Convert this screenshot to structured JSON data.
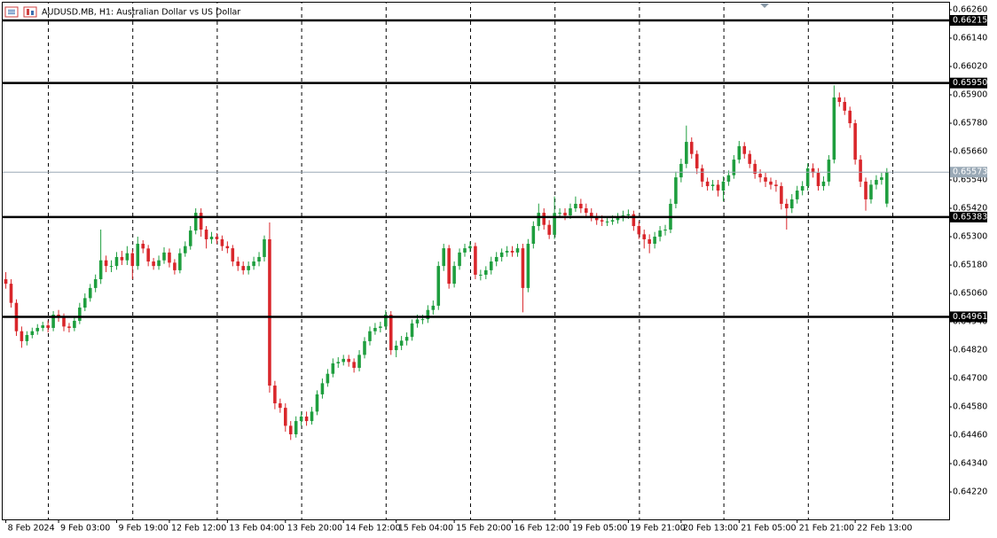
{
  "chart_data": {
    "type": "candlestick",
    "title": "AUDUSD.MB, H1:  Australian Dollar vs US Dollar",
    "up_color": "#1e9e3e",
    "down_color": "#d9262b",
    "level_color": "#000000",
    "current_color": "#9aa9b6",
    "current_price": 0.65573,
    "open": [
      0.6512,
      0.65101,
      0.6502,
      0.649,
      0.64858,
      0.64884,
      0.649,
      0.64914,
      0.64925,
      0.64914,
      0.6497,
      0.6496,
      0.6492,
      0.64914,
      0.64944,
      0.65,
      0.6504,
      0.65083,
      0.6512,
      0.652,
      0.65176,
      0.65176,
      0.65214,
      0.652,
      0.6523,
      0.65176,
      0.6527,
      0.6525,
      0.65195,
      0.65176,
      0.652,
      0.65233,
      0.6519,
      0.65158,
      0.6523,
      0.6526,
      0.65326,
      0.65401,
      0.6533,
      0.65289,
      0.653,
      0.65289,
      0.6526,
      0.65251,
      0.65195,
      0.65176,
      0.65158,
      0.65176,
      0.65195,
      0.65214,
      0.65289,
      0.6467,
      0.64595,
      0.64576,
      0.645,
      0.64464,
      0.6452,
      0.64539,
      0.6452,
      0.6456,
      0.64633,
      0.6468,
      0.6472,
      0.64764,
      0.6477,
      0.64783,
      0.6477,
      0.64745,
      0.648,
      0.64858,
      0.649,
      0.64914,
      0.6492,
      0.6497,
      0.6482,
      0.64839,
      0.6486,
      0.64876,
      0.64933,
      0.6495,
      0.64951,
      0.6499,
      0.65008,
      0.65176,
      0.65251,
      0.65101,
      0.65176,
      0.65233,
      0.65251,
      0.6526,
      0.65139,
      0.65139,
      0.65158,
      0.65195,
      0.65214,
      0.65233,
      0.6524,
      0.65233,
      0.65251,
      0.65083,
      0.6527,
      0.65345,
      0.65401,
      0.6535,
      0.65308,
      0.654,
      0.65401,
      0.6539,
      0.6542,
      0.65439,
      0.6542,
      0.65401,
      0.65383,
      0.6537,
      0.65364,
      0.65364,
      0.6537,
      0.65383,
      0.6539,
      0.65395,
      0.65345,
      0.6531,
      0.65289,
      0.6527,
      0.653,
      0.65326,
      0.6533,
      0.65439,
      0.65551,
      0.65608,
      0.65701,
      0.6565,
      0.65589,
      0.65533,
      0.65514,
      0.6552,
      0.65495,
      0.65533,
      0.6556,
      0.65626,
      0.65683,
      0.6565,
      0.65608,
      0.65566,
      0.65551,
      0.65533,
      0.6552,
      0.65514,
      0.65439,
      0.6542,
      0.65458,
      0.65495,
      0.65514,
      0.65589,
      0.6557,
      0.65514,
      0.65533,
      0.65626,
      0.65889,
      0.6587,
      0.65833,
      0.6578,
      0.65626,
      0.65533,
      0.65458,
      0.6552,
      0.6554,
      0.6544
    ],
    "high": [
      0.6515,
      0.6512,
      0.65035,
      0.6492,
      0.649,
      0.64915,
      0.6493,
      0.6494,
      0.64945,
      0.64985,
      0.6499,
      0.64975,
      0.64935,
      0.6496,
      0.6502,
      0.6506,
      0.651,
      0.6514,
      0.6533,
      0.6522,
      0.652,
      0.65235,
      0.6524,
      0.6526,
      0.65245,
      0.653,
      0.65285,
      0.65265,
      0.6521,
      0.6522,
      0.65255,
      0.6525,
      0.65205,
      0.6525,
      0.6528,
      0.65345,
      0.6542,
      0.6542,
      0.65345,
      0.6532,
      0.65315,
      0.65305,
      0.6528,
      0.65265,
      0.65215,
      0.65195,
      0.65195,
      0.65215,
      0.65235,
      0.65305,
      0.6536,
      0.6469,
      0.64615,
      0.64595,
      0.6452,
      0.6454,
      0.6456,
      0.6456,
      0.6458,
      0.6465,
      0.647,
      0.6474,
      0.64785,
      0.6479,
      0.648,
      0.648,
      0.64785,
      0.6482,
      0.64875,
      0.6492,
      0.64935,
      0.6494,
      0.6499,
      0.64985,
      0.6486,
      0.6488,
      0.64895,
      0.6495,
      0.6497,
      0.6497,
      0.6501,
      0.6503,
      0.65195,
      0.6527,
      0.65265,
      0.65195,
      0.6525,
      0.6527,
      0.6528,
      0.65275,
      0.6516,
      0.65175,
      0.65215,
      0.65235,
      0.6525,
      0.6526,
      0.6526,
      0.6527,
      0.6527,
      0.6529,
      0.65365,
      0.6544,
      0.6542,
      0.6537,
      0.6547,
      0.6542,
      0.6542,
      0.6544,
      0.6547,
      0.6546,
      0.6544,
      0.6542,
      0.654,
      0.6539,
      0.65385,
      0.6539,
      0.654,
      0.6541,
      0.65415,
      0.6541,
      0.65365,
      0.6533,
      0.6531,
      0.6532,
      0.65345,
      0.6535,
      0.6546,
      0.65575,
      0.6563,
      0.6577,
      0.6572,
      0.65665,
      0.65605,
      0.6555,
      0.6554,
      0.6554,
      0.65555,
      0.6558,
      0.65645,
      0.65705,
      0.657,
      0.65665,
      0.65625,
      0.65585,
      0.6557,
      0.6555,
      0.6554,
      0.6553,
      0.6546,
      0.6548,
      0.65515,
      0.65535,
      0.6561,
      0.6561,
      0.6559,
      0.65555,
      0.65645,
      0.6594,
      0.6591,
      0.6589,
      0.6585,
      0.65795,
      0.65645,
      0.6555,
      0.6554,
      0.6556,
      0.6557,
      0.6559
    ],
    "low": [
      0.6508,
      0.65,
      0.6488,
      0.6483,
      0.6484,
      0.6487,
      0.64885,
      0.649,
      0.64895,
      0.649,
      0.6494,
      0.649,
      0.64895,
      0.649,
      0.6493,
      0.64985,
      0.65025,
      0.65065,
      0.651,
      0.6515,
      0.6515,
      0.6516,
      0.6518,
      0.6518,
      0.6512,
      0.6516,
      0.6523,
      0.65175,
      0.6516,
      0.6516,
      0.65185,
      0.6517,
      0.6514,
      0.65145,
      0.65215,
      0.65245,
      0.6531,
      0.653,
      0.6525,
      0.6527,
      0.6527,
      0.6524,
      0.6523,
      0.65175,
      0.65155,
      0.6514,
      0.6514,
      0.6516,
      0.65175,
      0.65195,
      0.6464,
      0.6457,
      0.64555,
      0.64475,
      0.6444,
      0.6445,
      0.645,
      0.645,
      0.64505,
      0.64545,
      0.64615,
      0.64665,
      0.64705,
      0.64745,
      0.64755,
      0.6475,
      0.64725,
      0.6473,
      0.64785,
      0.6484,
      0.64885,
      0.64895,
      0.64905,
      0.648,
      0.6479,
      0.6482,
      0.6484,
      0.6486,
      0.64915,
      0.6493,
      0.64935,
      0.6497,
      0.6499,
      0.65155,
      0.6508,
      0.65085,
      0.6516,
      0.65215,
      0.65235,
      0.6512,
      0.65115,
      0.6512,
      0.6514,
      0.65175,
      0.65195,
      0.65215,
      0.65215,
      0.65215,
      0.6498,
      0.65065,
      0.6525,
      0.65325,
      0.6533,
      0.6529,
      0.6529,
      0.6538,
      0.6537,
      0.65375,
      0.65405,
      0.654,
      0.65385,
      0.65365,
      0.6535,
      0.65345,
      0.65345,
      0.6535,
      0.65355,
      0.65365,
      0.65375,
      0.65325,
      0.6529,
      0.6525,
      0.6523,
      0.6525,
      0.6528,
      0.65305,
      0.65315,
      0.6542,
      0.6553,
      0.6559,
      0.6563,
      0.65565,
      0.6551,
      0.65495,
      0.65495,
      0.6547,
      0.6545,
      0.65515,
      0.65545,
      0.6561,
      0.6563,
      0.6559,
      0.65545,
      0.6553,
      0.6551,
      0.655,
      0.6549,
      0.65415,
      0.6533,
      0.654,
      0.6544,
      0.65475,
      0.65495,
      0.6555,
      0.65495,
      0.65495,
      0.65515,
      0.6561,
      0.6585,
      0.65815,
      0.6576,
      0.65605,
      0.6551,
      0.6541,
      0.6544,
      0.655,
      0.6552,
      0.65425
    ],
    "close": [
      0.65101,
      0.6502,
      0.649,
      0.64858,
      0.64884,
      0.649,
      0.64914,
      0.64925,
      0.64914,
      0.6497,
      0.6496,
      0.6492,
      0.64914,
      0.64944,
      0.65,
      0.6504,
      0.65083,
      0.6512,
      0.652,
      0.65176,
      0.65176,
      0.65214,
      0.652,
      0.6523,
      0.65176,
      0.6527,
      0.6525,
      0.65195,
      0.65176,
      0.652,
      0.65233,
      0.6519,
      0.65158,
      0.6523,
      0.6526,
      0.65326,
      0.65401,
      0.6533,
      0.65289,
      0.653,
      0.65289,
      0.6526,
      0.65251,
      0.65195,
      0.65176,
      0.65158,
      0.65176,
      0.65195,
      0.65214,
      0.65289,
      0.6467,
      0.64595,
      0.64576,
      0.645,
      0.64464,
      0.6452,
      0.64539,
      0.6452,
      0.6456,
      0.64633,
      0.6468,
      0.6472,
      0.64764,
      0.6477,
      0.64783,
      0.6477,
      0.64745,
      0.648,
      0.64858,
      0.649,
      0.64914,
      0.6492,
      0.6497,
      0.6482,
      0.64839,
      0.6486,
      0.64876,
      0.64933,
      0.6495,
      0.64951,
      0.6499,
      0.65008,
      0.65176,
      0.65251,
      0.65101,
      0.65176,
      0.65233,
      0.65251,
      0.6526,
      0.65139,
      0.65139,
      0.65158,
      0.65195,
      0.65214,
      0.65233,
      0.6524,
      0.65233,
      0.65251,
      0.65083,
      0.6527,
      0.65345,
      0.65401,
      0.6535,
      0.65308,
      0.654,
      0.65401,
      0.6539,
      0.6542,
      0.65439,
      0.6542,
      0.65401,
      0.65383,
      0.6537,
      0.65364,
      0.65364,
      0.6537,
      0.65383,
      0.6539,
      0.65395,
      0.65345,
      0.6531,
      0.65289,
      0.6527,
      0.653,
      0.65326,
      0.6533,
      0.65439,
      0.65551,
      0.65608,
      0.65701,
      0.6565,
      0.65589,
      0.65533,
      0.65514,
      0.6552,
      0.65495,
      0.65533,
      0.6556,
      0.65626,
      0.65683,
      0.6565,
      0.65608,
      0.65566,
      0.65551,
      0.65533,
      0.6552,
      0.65514,
      0.65439,
      0.6542,
      0.65458,
      0.65495,
      0.65514,
      0.65589,
      0.6557,
      0.65514,
      0.65533,
      0.65626,
      0.65889,
      0.6587,
      0.65833,
      0.6578,
      0.65626,
      0.65533,
      0.65458,
      0.6552,
      0.6554,
      0.65551,
      0.65573
    ],
    "xlim": [
      -0.6,
      178.8
    ],
    "xticks": [
      {
        "value": 0,
        "label": "8 Feb 2024"
      },
      {
        "value": 10,
        "label": "9 Feb 03:00"
      },
      {
        "value": 21,
        "label": "9 Feb 19:00"
      },
      {
        "value": 31,
        "label": "12 Feb 12:00"
      },
      {
        "value": 42,
        "label": "13 Feb 04:00"
      },
      {
        "value": 53,
        "label": "13 Feb 20:00"
      },
      {
        "value": 64,
        "label": "14 Feb 12:00"
      },
      {
        "value": 74,
        "label": "15 Feb 04:00"
      },
      {
        "value": 85,
        "label": "15 Feb 20:00"
      },
      {
        "value": 96,
        "label": "16 Feb 12:00"
      },
      {
        "value": 107,
        "label": "19 Feb 05:00"
      },
      {
        "value": 118,
        "label": "19 Feb 21:00"
      },
      {
        "value": 128,
        "label": "20 Feb 13:00"
      },
      {
        "value": 139,
        "label": "21 Feb 05:00"
      },
      {
        "value": 150,
        "label": "21 Feb 21:00"
      },
      {
        "value": 161,
        "label": "22 Feb 13:00"
      }
    ],
    "ylim": [
      0.64104,
      0.6629
    ],
    "yticks": [
      {
        "value": 0.6626,
        "label": "0.66260"
      },
      {
        "value": 0.6614,
        "label": "0.66140"
      },
      {
        "value": 0.6602,
        "label": "0.66020"
      },
      {
        "value": 0.659,
        "label": "0.65900"
      },
      {
        "value": 0.6578,
        "label": "0.65780"
      },
      {
        "value": 0.6566,
        "label": "0.65660"
      },
      {
        "value": 0.6554,
        "label": "0.65540"
      },
      {
        "value": 0.6542,
        "label": "0.65420"
      },
      {
        "value": 0.653,
        "label": "0.65300"
      },
      {
        "value": 0.6518,
        "label": "0.65180"
      },
      {
        "value": 0.6506,
        "label": "0.65060"
      },
      {
        "value": 0.6494,
        "label": "0.64940"
      },
      {
        "value": 0.6482,
        "label": "0.64820"
      },
      {
        "value": 0.647,
        "label": "0.64700"
      },
      {
        "value": 0.6458,
        "label": "0.64580"
      },
      {
        "value": 0.6446,
        "label": "0.64460"
      },
      {
        "value": 0.6434,
        "label": "0.64340"
      },
      {
        "value": 0.6422,
        "label": "0.64220"
      }
    ],
    "levels": [
      {
        "value": 0.66215,
        "label": "0.66215"
      },
      {
        "value": 0.6595,
        "label": "0.65950"
      },
      {
        "value": 0.65383,
        "label": "0.65383"
      },
      {
        "value": 0.64961,
        "label": "0.64961"
      }
    ]
  }
}
